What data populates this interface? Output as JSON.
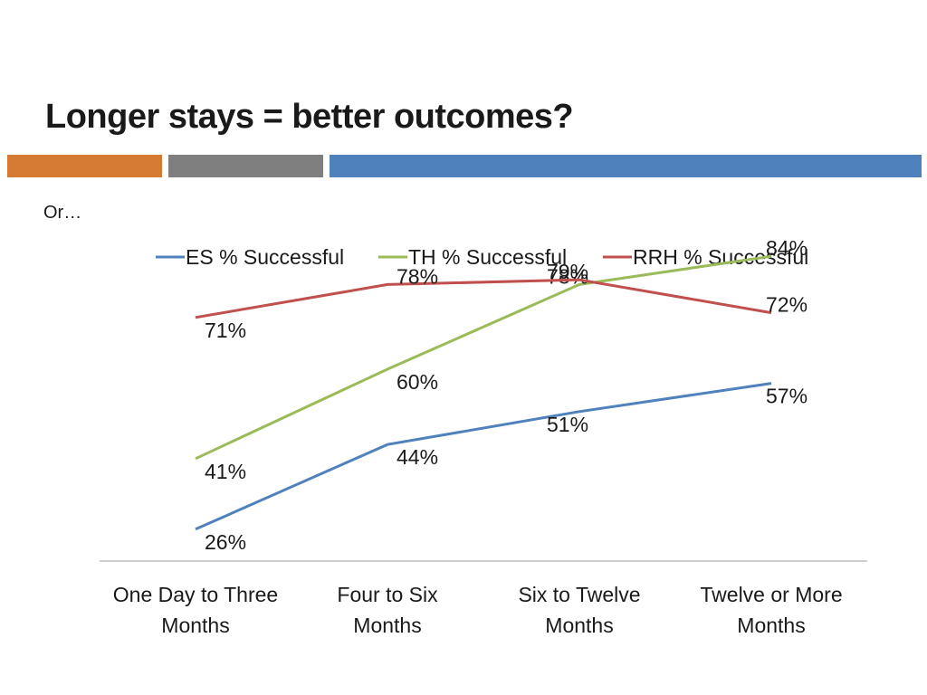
{
  "slide": {
    "title": "Longer stays = better outcomes?",
    "subtitle": "Or…",
    "accent_colors": {
      "orange": "#d47a33",
      "gray": "#7f7f7f",
      "blue": "#4f81bd"
    }
  },
  "chart_data": {
    "type": "line",
    "title": "",
    "xlabel": "",
    "ylabel": "",
    "categories": [
      [
        "One Day to Three",
        "Months"
      ],
      [
        "Four to Six",
        "Months"
      ],
      [
        "Six to Twelve",
        "Months"
      ],
      [
        "Twelve or More",
        "Months"
      ]
    ],
    "ylim": [
      0,
      100
    ],
    "grid": false,
    "legend_position": "top",
    "series": [
      {
        "name": "ES % Successful",
        "color": "#4f81bd",
        "values": [
          26,
          44,
          51,
          57
        ],
        "labels": [
          "26%",
          "44%",
          "51%",
          "57%"
        ]
      },
      {
        "name": "TH % Successful",
        "color": "#9bbb59",
        "values": [
          41,
          60,
          78,
          84
        ],
        "labels": [
          "41%",
          "60%",
          "78%",
          "84%"
        ]
      },
      {
        "name": "RRH % Successful",
        "color": "#c0504d",
        "values": [
          71,
          78,
          79,
          72
        ],
        "labels": [
          "71%",
          "78%",
          "79%",
          "72%"
        ]
      }
    ]
  }
}
